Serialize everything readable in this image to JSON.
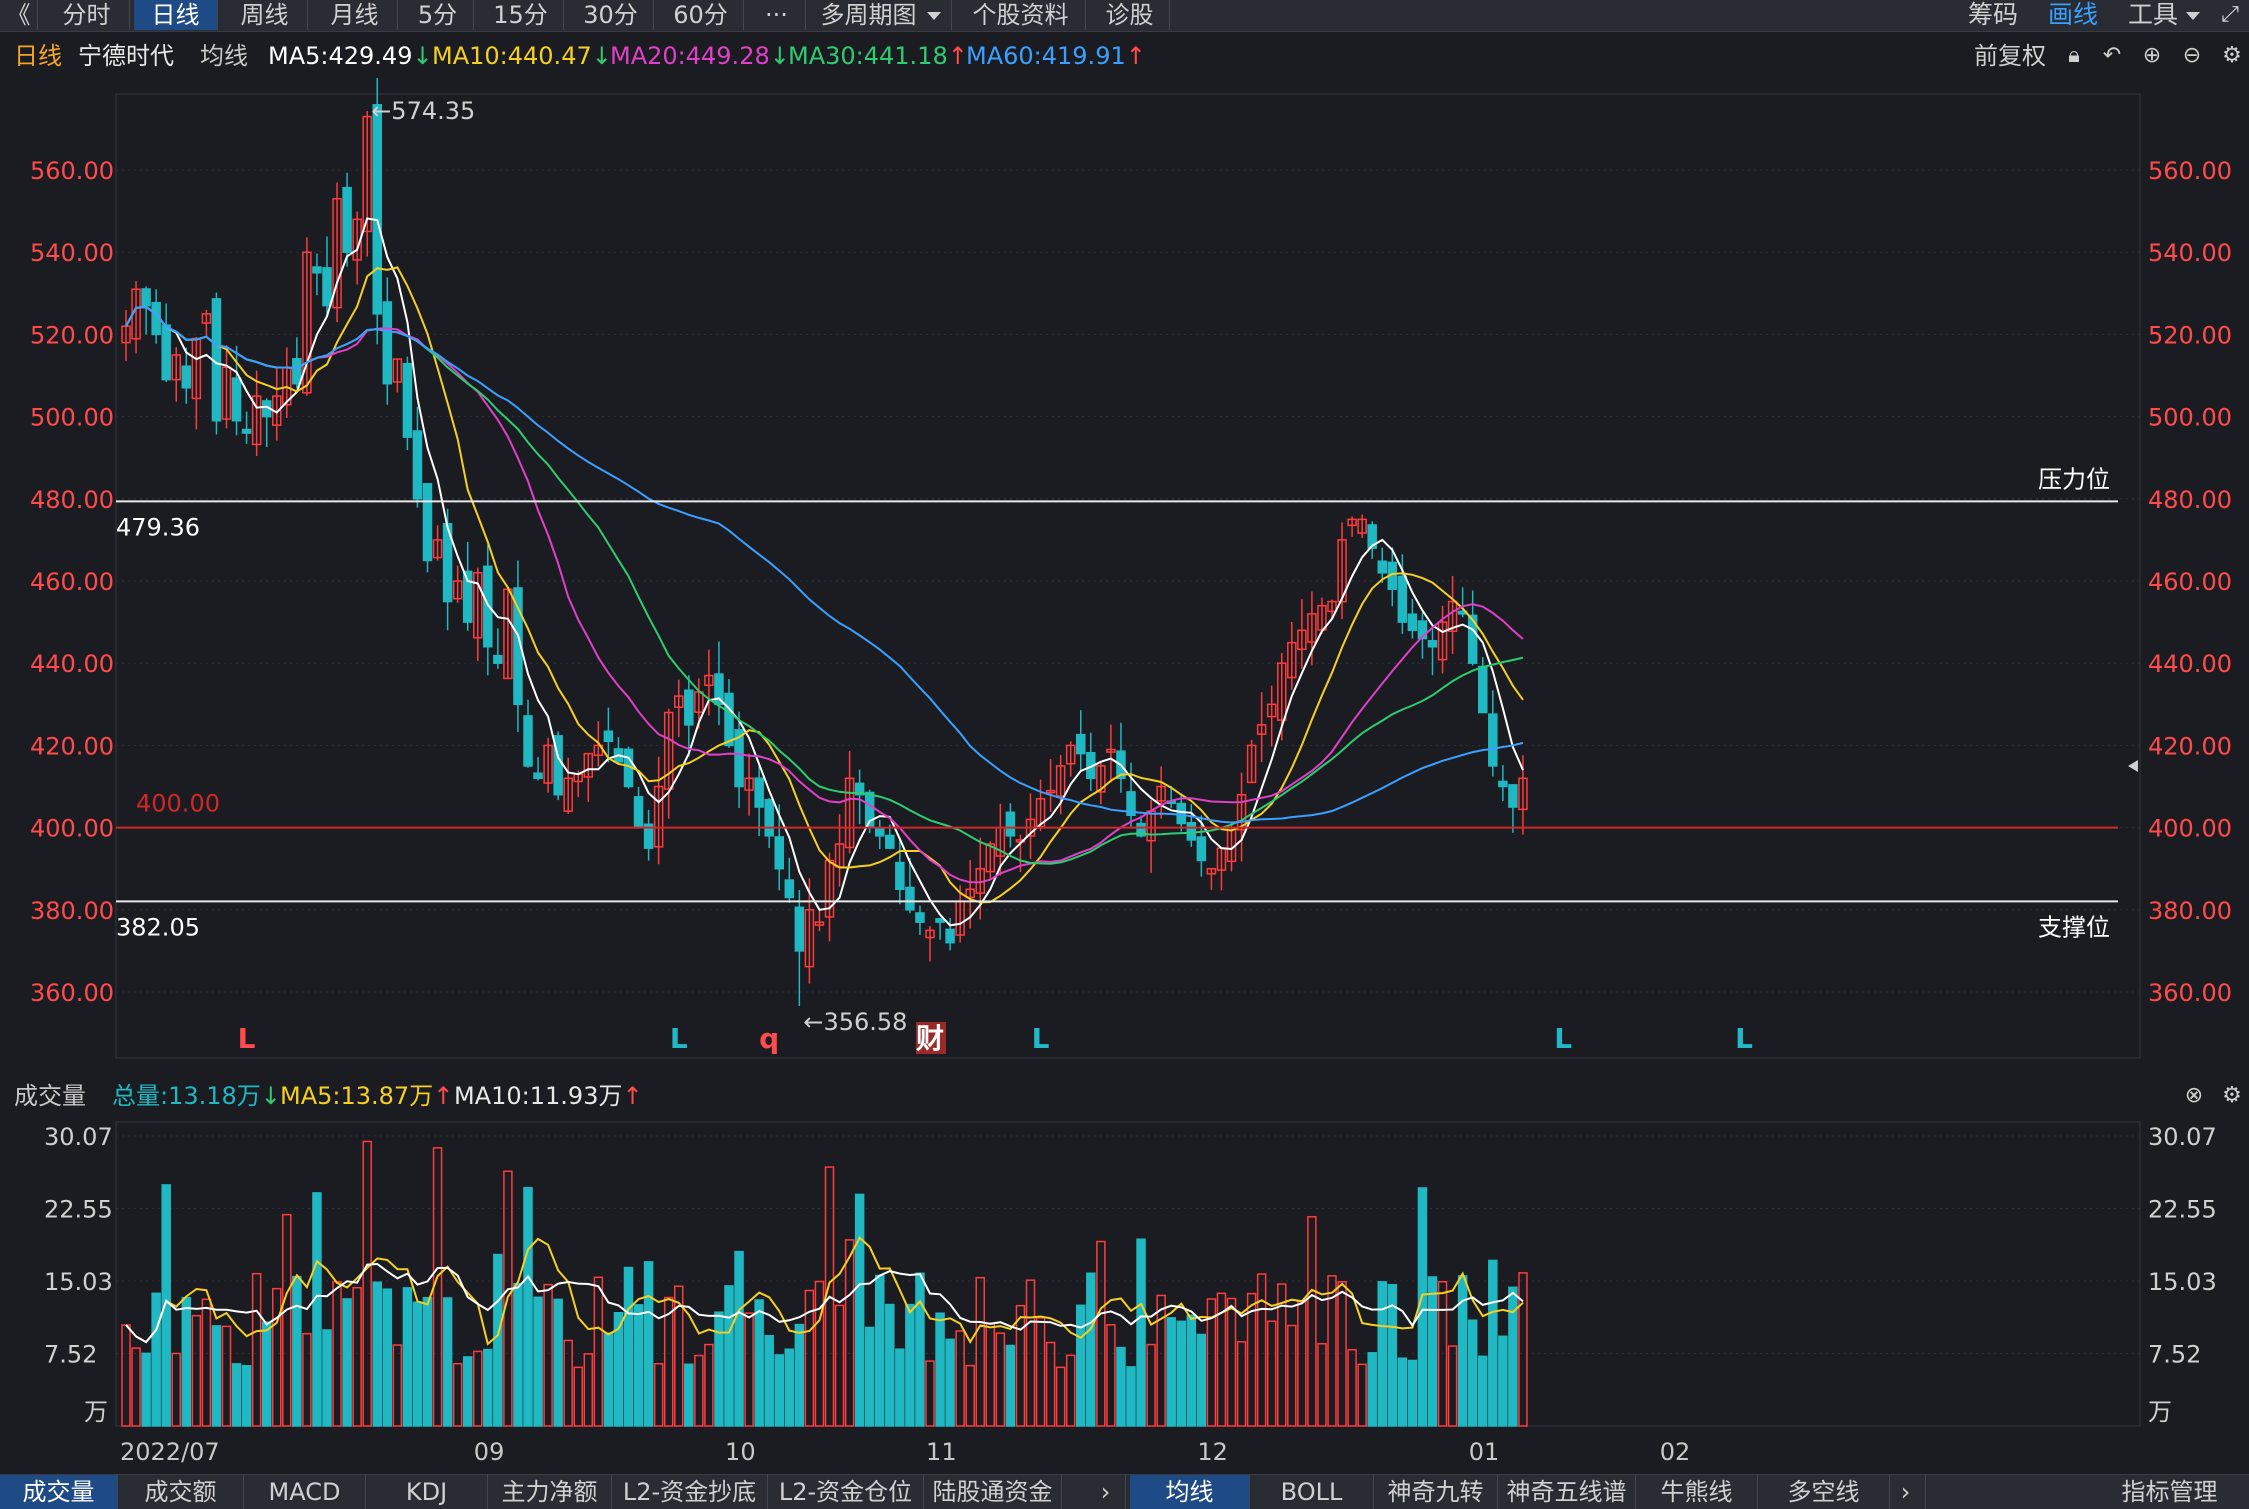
{
  "toolbar": {
    "tabs": [
      {
        "label": "分时",
        "active": false
      },
      {
        "label": "日线",
        "active": true
      },
      {
        "label": "周线",
        "active": false
      },
      {
        "label": "月线",
        "active": false
      },
      {
        "label": "5分",
        "active": false
      },
      {
        "label": "15分",
        "active": false
      },
      {
        "label": "30分",
        "active": false
      },
      {
        "label": "60分",
        "active": false
      },
      {
        "label": "···",
        "active": false
      },
      {
        "label": "多周期图",
        "active": false
      },
      {
        "label": "个股资料",
        "active": false
      },
      {
        "label": "诊股",
        "active": false
      }
    ],
    "back_symbol": "《",
    "right": {
      "chips": "筹码",
      "draw": "画线",
      "tools": "工具"
    }
  },
  "ma_bar": {
    "period": "日线",
    "stock_name": "宁德时代",
    "avg_label": "均线",
    "items": [
      {
        "label": "MA5:429.49",
        "arrow": "↓",
        "dir": "down",
        "color": "#ffffff"
      },
      {
        "label": "MA10:440.47",
        "arrow": "↓",
        "dir": "down",
        "color": "#f5d020"
      },
      {
        "label": "MA20:449.28",
        "arrow": "↓",
        "dir": "down",
        "color": "#e040c8"
      },
      {
        "label": "MA30:441.18",
        "arrow": "↑",
        "dir": "up",
        "color": "#2ecc71"
      },
      {
        "label": "MA60:419.91",
        "arrow": "↑",
        "dir": "up",
        "color": "#3aa0ff"
      }
    ],
    "adjust": "前复权"
  },
  "price_axis": {
    "ticks": [
      "560.00",
      "540.00",
      "520.00",
      "500.00",
      "480.00",
      "460.00",
      "440.00",
      "420.00",
      "400.00",
      "380.00",
      "360.00"
    ],
    "tick_values": [
      560,
      540,
      520,
      500,
      480,
      460,
      440,
      420,
      400,
      380,
      360
    ]
  },
  "annotations": {
    "high": "←574.35",
    "low": "←356.58",
    "resistance_value": "479.36",
    "resistance_label": "压力位",
    "support_value": "382.05",
    "support_label": "支撑位",
    "level_400": "400.00",
    "markers": [
      {
        "text": "L",
        "color": "#ff4b4b",
        "bar": 12
      },
      {
        "text": "L",
        "color": "#22b8c8",
        "bar": 55
      },
      {
        "text": "q",
        "color": "#ff4b4b",
        "bar": 64
      },
      {
        "text": "财",
        "color": "#ffffff",
        "bar": 80,
        "boxed": true
      },
      {
        "text": "L",
        "color": "#22b8c8",
        "bar": 91
      },
      {
        "text": "L",
        "color": "#22b8c8",
        "bar": 143
      },
      {
        "text": "L",
        "color": "#22b8c8",
        "bar": 161
      }
    ]
  },
  "volume_bar": {
    "title": "成交量",
    "total": "总量:13.18万",
    "total_arrow": "↓",
    "ma5": "MA5:13.87万",
    "ma5_arrow": "↑",
    "ma10": "MA10:11.93万",
    "ma10_arrow": "↑"
  },
  "volume_axis": {
    "ticks": [
      "30.07",
      "22.55",
      "15.03",
      "7.52",
      "万"
    ]
  },
  "x_axis": {
    "labels": [
      {
        "text": "2022/07",
        "bar": 0
      },
      {
        "text": "09",
        "bar": 36
      },
      {
        "text": "10",
        "bar": 61
      },
      {
        "text": "11",
        "bar": 81
      },
      {
        "text": "12",
        "bar": 108
      },
      {
        "text": "01",
        "bar": 135
      },
      {
        "text": "02",
        "bar": 154
      }
    ]
  },
  "bottom_tabs": {
    "left": [
      {
        "label": "成交量",
        "active": true
      },
      {
        "label": "成交额",
        "active": false
      },
      {
        "label": "MACD",
        "active": false
      },
      {
        "label": "KDJ",
        "active": false
      },
      {
        "label": "主力净额",
        "active": false
      },
      {
        "label": "L2-资金抄底",
        "active": false
      },
      {
        "label": "L2-资金仓位",
        "active": false
      },
      {
        "label": "陆股通资金",
        "active": false
      }
    ],
    "right": [
      {
        "label": "均线",
        "active": true
      },
      {
        "label": "BOLL",
        "active": false
      },
      {
        "label": "神奇九转",
        "active": false
      },
      {
        "label": "神奇五线谱",
        "active": false
      },
      {
        "label": "牛熊线",
        "active": false
      },
      {
        "label": "多空线",
        "active": false
      }
    ],
    "last": "指标管理"
  },
  "colors": {
    "up": "#ff3b3b",
    "down": "#1fb8c3",
    "ma5": "#ffffff",
    "ma10": "#f5d020",
    "ma20": "#e040c8",
    "ma30": "#2ecc71",
    "ma60": "#3aa0ff",
    "axis_red": "#ff4b4b"
  },
  "chart_data": {
    "type": "candlestick",
    "title": "",
    "close_path": [
      522,
      531,
      527,
      520,
      509,
      515,
      507,
      519,
      525,
      499,
      512,
      499,
      496,
      505,
      500,
      505,
      512,
      508,
      540,
      535,
      527,
      553,
      540,
      548,
      573,
      525,
      508,
      514,
      495,
      480,
      465,
      470,
      455,
      460,
      450,
      462,
      444,
      440,
      458,
      430,
      415,
      412,
      420,
      408,
      412,
      413,
      418,
      420,
      421,
      416,
      410,
      400,
      395,
      410,
      428,
      432,
      425,
      433,
      437,
      430,
      420,
      410,
      412,
      405,
      398,
      390,
      383,
      370,
      380,
      377,
      392,
      396,
      412,
      408,
      400,
      398,
      395,
      385,
      380,
      377,
      375,
      377,
      372,
      382,
      385,
      390,
      396,
      400,
      398,
      397,
      402,
      407,
      409,
      415,
      420,
      418,
      412,
      415,
      419,
      412,
      403,
      398,
      404,
      410,
      406,
      401,
      397,
      392,
      390,
      395,
      400,
      408,
      420,
      425,
      430,
      440,
      445,
      448,
      452,
      454,
      455,
      470,
      475,
      475,
      468,
      462,
      458,
      450,
      448,
      446,
      444,
      450,
      455,
      452,
      440,
      428,
      415,
      410,
      405,
      412
    ]
  }
}
